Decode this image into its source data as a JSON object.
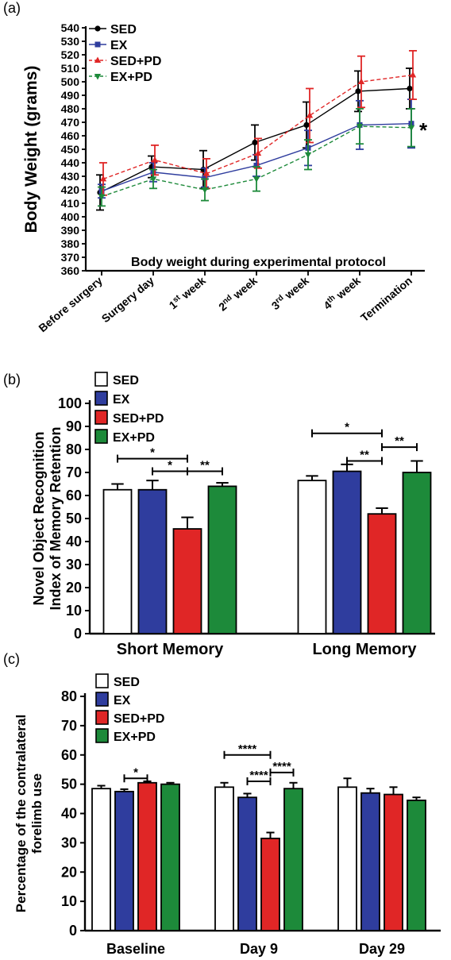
{
  "chart_data": [
    {
      "panel": "(a)",
      "type": "line",
      "ylabel": "Body Weight (grams)",
      "xlabel": "",
      "annotation": "Body weight during experimental protocol",
      "ylim": [
        360,
        540
      ],
      "yticks": [
        360,
        370,
        380,
        390,
        400,
        410,
        420,
        430,
        440,
        450,
        460,
        470,
        480,
        490,
        500,
        510,
        520,
        530,
        540
      ],
      "categories": [
        {
          "label": "Before surgery",
          "base": "Before surgery",
          "sup": "",
          "rest": ""
        },
        {
          "label": "Surgery day",
          "base": "Surgery day",
          "sup": "",
          "rest": ""
        },
        {
          "label": "1st week",
          "base": "1",
          "sup": "st",
          "rest": " week"
        },
        {
          "label": "2nd week",
          "base": "2",
          "sup": "nd",
          "rest": " week"
        },
        {
          "label": "3rd week",
          "base": "3",
          "sup": "rd",
          "rest": " week"
        },
        {
          "label": "4th week",
          "base": "4",
          "sup": "th",
          "rest": " week"
        },
        {
          "label": "Termination",
          "base": "Termination",
          "sup": "",
          "rest": ""
        }
      ],
      "series": [
        {
          "name": "SED",
          "color": "#000000",
          "marker": "circle",
          "dash": "none",
          "values": [
            418,
            437,
            435,
            455,
            468,
            493,
            495
          ],
          "errors": [
            13,
            8,
            14,
            13,
            17,
            15,
            15
          ]
        },
        {
          "name": "EX",
          "color": "#2f3d9e",
          "marker": "square",
          "dash": "none",
          "values": [
            419,
            433,
            429,
            438,
            451,
            468,
            469
          ],
          "errors": [
            5,
            7,
            7,
            8,
            13,
            18,
            18
          ]
        },
        {
          "name": "SED+PD",
          "color": "#e02626",
          "marker": "triangle-up",
          "dash": "dash",
          "values": [
            428,
            442,
            432,
            447,
            475,
            500,
            505
          ],
          "errors": [
            12,
            11,
            11,
            11,
            20,
            19,
            18
          ]
        },
        {
          "name": "EX+PD",
          "color": "#1d8a3a",
          "marker": "triangle-down",
          "dash": "dash",
          "values": [
            415,
            428,
            420,
            428,
            446,
            467,
            466
          ],
          "errors": [
            7,
            7,
            8,
            9,
            11,
            13,
            14
          ]
        }
      ],
      "significance": [
        {
          "category": "Termination",
          "text": "*"
        }
      ]
    },
    {
      "panel": "(b)",
      "type": "bar",
      "ylabel": "Novel Object Recognition\nIndex of Memory Retention",
      "ylabel_lines": [
        "Novel Object Recognition",
        "Index of Memory Retention"
      ],
      "ylim": [
        0,
        100
      ],
      "yticks": [
        0,
        10,
        20,
        30,
        40,
        50,
        60,
        70,
        80,
        90,
        100
      ],
      "categories": [
        "Short Memory",
        "Long Memory"
      ],
      "series": [
        {
          "name": "SED",
          "color": "#ffffff",
          "values": [
            62.5,
            66.5
          ],
          "errors": [
            2.5,
            2
          ]
        },
        {
          "name": "EX",
          "color": "#2f3d9e",
          "values": [
            62.5,
            70.5
          ],
          "errors": [
            4,
            3
          ]
        },
        {
          "name": "SED+PD",
          "color": "#e02626",
          "values": [
            45.5,
            52
          ],
          "errors": [
            5,
            2.5
          ]
        },
        {
          "name": "EX+PD",
          "color": "#1d8a3a",
          "values": [
            64,
            70
          ],
          "errors": [
            1.5,
            5
          ]
        }
      ],
      "brackets": [
        {
          "category": "Short Memory",
          "from": "SED",
          "to": "SED+PD",
          "y": 76,
          "text": "*"
        },
        {
          "category": "Short Memory",
          "from": "EX",
          "to": "SED+PD",
          "y": 70.5,
          "text": "*"
        },
        {
          "category": "Short Memory",
          "from": "SED+PD",
          "to": "EX+PD",
          "y": 70.5,
          "text": "**"
        },
        {
          "category": "Long Memory",
          "from": "SED",
          "to": "SED+PD",
          "y": 87,
          "text": "*"
        },
        {
          "category": "Long Memory",
          "from": "SED+PD",
          "to": "EX+PD",
          "y": 81,
          "text": "**"
        },
        {
          "category": "Long Memory",
          "from": "EX",
          "to": "SED+PD",
          "y": 75,
          "text": "**"
        }
      ]
    },
    {
      "panel": "(c)",
      "type": "bar",
      "ylabel": "Percentage of the contralateral\nforelimb use",
      "ylabel_lines": [
        "Percentage of the contralateral",
        "forelimb use"
      ],
      "ylim": [
        0,
        80
      ],
      "yticks": [
        0,
        10,
        20,
        30,
        40,
        50,
        60,
        70,
        80
      ],
      "categories": [
        "Baseline",
        "Day 9",
        "Day 29"
      ],
      "series": [
        {
          "name": "SED",
          "color": "#ffffff",
          "values": [
            48.5,
            49,
            49
          ],
          "errors": [
            1,
            1.5,
            3
          ]
        },
        {
          "name": "EX",
          "color": "#2f3d9e",
          "values": [
            47.5,
            45.5,
            47
          ],
          "errors": [
            0.8,
            1.3,
            1.5
          ]
        },
        {
          "name": "SED+PD",
          "color": "#e02626",
          "values": [
            50.5,
            31.5,
            46.5
          ],
          "errors": [
            0.5,
            2,
            2.5
          ]
        },
        {
          "name": "EX+PD",
          "color": "#1d8a3a",
          "values": [
            50,
            48.5,
            44.5
          ],
          "errors": [
            0.5,
            2,
            1
          ]
        }
      ],
      "brackets": [
        {
          "category": "Baseline",
          "from": "EX",
          "to": "SED+PD",
          "y": 52,
          "text": "*"
        },
        {
          "category": "Day 9",
          "from": "SED",
          "to": "SED+PD",
          "y": 60,
          "text": "****"
        },
        {
          "category": "Day 9",
          "from": "EX",
          "to": "SED+PD",
          "y": 51,
          "text": "****"
        },
        {
          "category": "Day 9",
          "from": "SED+PD",
          "to": "EX+PD",
          "y": 54,
          "text": "****"
        }
      ]
    }
  ]
}
